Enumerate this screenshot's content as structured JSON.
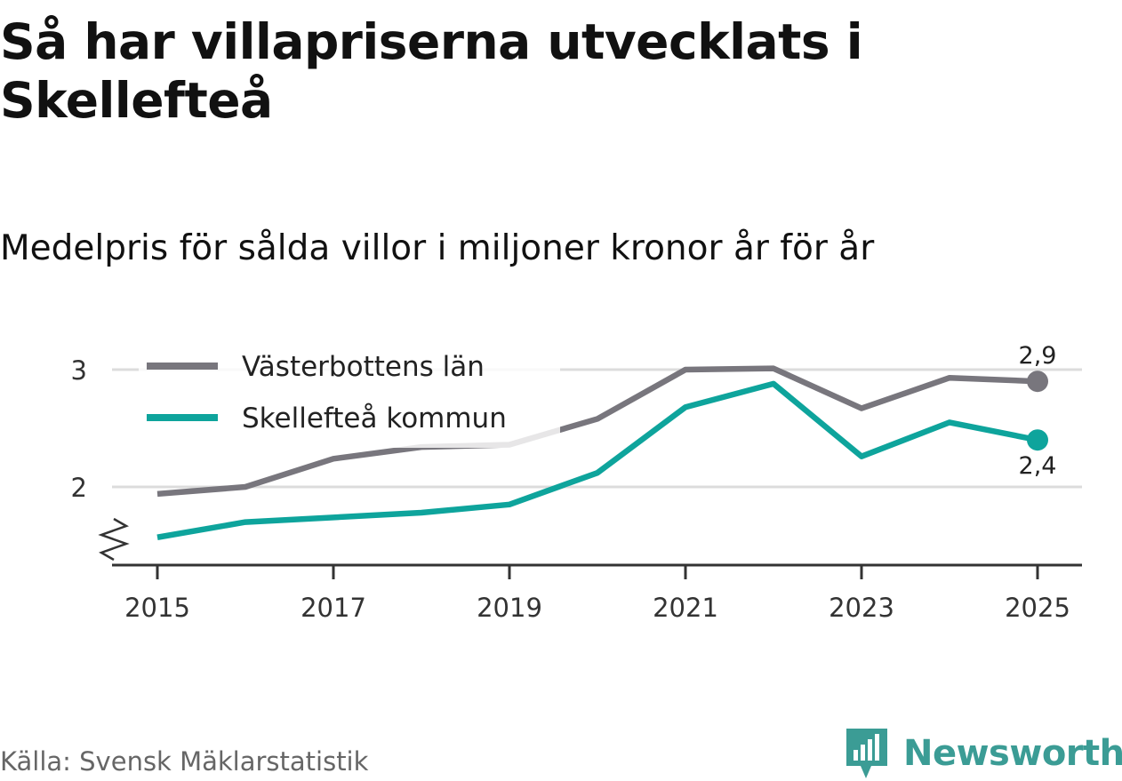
{
  "title": "Så har villapriserna utvecklats i Skellefteå",
  "subtitle": "Medelpris för sålda villor i miljoner kronor år för år",
  "source": "Källa: Svensk Mäklarstatistik",
  "brand": "Newsworthy",
  "colors": {
    "lan": "#78767d",
    "kommun": "#0ea49c",
    "grid": "#dcdcdc",
    "axis": "#333333",
    "brand": "#3b9c95"
  },
  "chart_data": {
    "type": "line",
    "x": [
      2015,
      2016,
      2017,
      2018,
      2019,
      2020,
      2021,
      2022,
      2023,
      2024,
      2025
    ],
    "x_ticks": [
      "2015",
      "2017",
      "2019",
      "2021",
      "2023",
      "2025"
    ],
    "y_ticks": [
      "2",
      "3"
    ],
    "ylim": [
      1.35,
      3.1
    ],
    "y_axis_break": true,
    "series": [
      {
        "name": "Västerbottens län",
        "color": "#78767d",
        "values": [
          1.94,
          2.0,
          2.24,
          2.34,
          2.36,
          2.58,
          3.0,
          3.01,
          2.67,
          2.93,
          2.9
        ],
        "end_label": "2,9"
      },
      {
        "name": "Skellefteå kommun",
        "color": "#0ea49c",
        "values": [
          1.57,
          1.7,
          1.74,
          1.78,
          1.85,
          2.12,
          2.68,
          2.88,
          2.26,
          2.55,
          2.4
        ],
        "end_label": "2,4"
      }
    ],
    "legend_position": "top-left"
  }
}
